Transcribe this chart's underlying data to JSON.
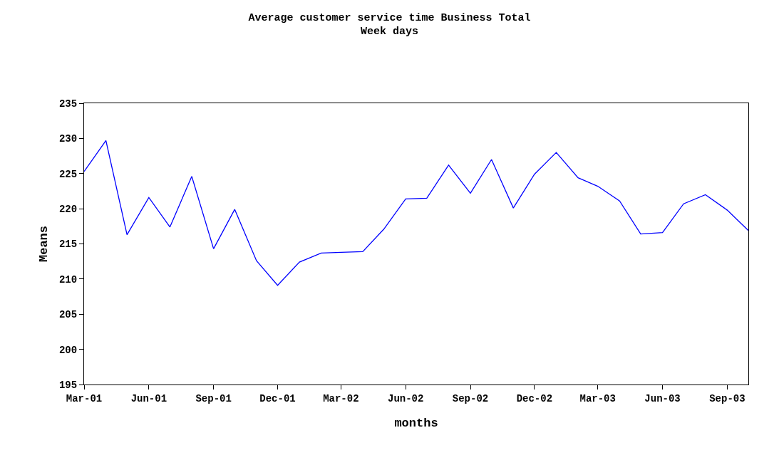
{
  "chart_data": {
    "type": "line",
    "title": "Average customer service time Business Total",
    "subtitle": "Week days",
    "xlabel": "months",
    "ylabel": "Means",
    "x": [
      "2001-03",
      "2001-04",
      "2001-05",
      "2001-06",
      "2001-07",
      "2001-08",
      "2001-09",
      "2001-10",
      "2001-11",
      "2001-12",
      "2002-01",
      "2002-02",
      "2002-03",
      "2002-04",
      "2002-05",
      "2002-06",
      "2002-07",
      "2002-08",
      "2002-09",
      "2002-10",
      "2002-11",
      "2002-12",
      "2003-01",
      "2003-02",
      "2003-03",
      "2003-04",
      "2003-05",
      "2003-06",
      "2003-07",
      "2003-08",
      "2003-09",
      "2003-10"
    ],
    "series": [
      {
        "color": "#0000ff",
        "values": [
          225.3,
          229.7,
          216.3,
          221.6,
          217.4,
          224.6,
          214.3,
          219.9,
          212.6,
          209.1,
          212.4,
          213.7,
          213.8,
          213.9,
          217.1,
          221.4,
          221.5,
          226.2,
          222.2,
          227.0,
          220.1,
          224.9,
          228.0,
          224.4,
          223.2,
          221.1,
          216.4,
          216.6,
          220.7,
          222.0,
          219.8,
          216.9
        ]
      }
    ],
    "xlim": [
      "2001-03",
      "2003-10"
    ],
    "xticks": [
      {
        "value": "2001-03",
        "label": "Mar-01"
      },
      {
        "value": "2001-06",
        "label": "Jun-01"
      },
      {
        "value": "2001-09",
        "label": "Sep-01"
      },
      {
        "value": "2001-12",
        "label": "Dec-01"
      },
      {
        "value": "2002-03",
        "label": "Mar-02"
      },
      {
        "value": "2002-06",
        "label": "Jun-02"
      },
      {
        "value": "2002-09",
        "label": "Sep-02"
      },
      {
        "value": "2002-12",
        "label": "Dec-02"
      },
      {
        "value": "2003-03",
        "label": "Mar-03"
      },
      {
        "value": "2003-06",
        "label": "Jun-03"
      },
      {
        "value": "2003-09",
        "label": "Sep-03"
      }
    ],
    "ylim": [
      195,
      235
    ],
    "yticks": [
      195,
      200,
      205,
      210,
      215,
      220,
      225,
      230,
      235
    ],
    "marker": "none",
    "line_style": "solid"
  }
}
